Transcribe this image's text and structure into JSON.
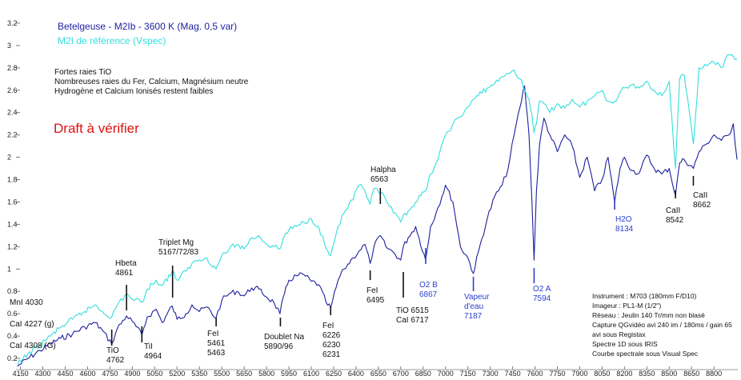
{
  "chart_data": {
    "type": "line",
    "title": "Betelgeuse - M2Ib - 3600 K (Mag. 0,5 var)",
    "subtitle": "M2I de référence (Vspec)",
    "xlabel": "",
    "ylabel": "",
    "xlim": [
      4120,
      8960
    ],
    "ylim": [
      0.1,
      3.35
    ],
    "x_ticks": [
      "4150",
      "4300",
      "4450",
      "4600",
      "4750",
      "4900",
      "5050",
      "5200",
      "5350",
      "5500",
      "5650",
      "5800",
      "5950",
      "6100",
      "6250",
      "6400",
      "6550",
      "6700",
      "6850",
      "7000",
      "7150",
      "7300",
      "7450",
      "7600",
      "7750",
      "7900",
      "8050",
      "8200",
      "8350",
      "8500",
      "8650",
      "8800"
    ],
    "y_ticks": [
      "0.2",
      "0.4",
      "0.6",
      "0.8",
      "1",
      "1.2",
      "1.4",
      "1.6",
      "1.8",
      "2",
      "2.2",
      "2.4",
      "2.6",
      "2.8",
      "3",
      "3.2"
    ],
    "series": [
      {
        "name": "Betelgeuse - M2Ib - 3600 K (Mag. 0,5 var)",
        "color": "#1d1f9e",
        "x": [
          4130,
          4200,
          4280,
          4350,
          4420,
          4500,
          4580,
          4650,
          4700,
          4762,
          4800,
          4861,
          4900,
          4964,
          5000,
          5060,
          5100,
          5167,
          5200,
          5260,
          5300,
          5350,
          5400,
          5461,
          5500,
          5550,
          5600,
          5650,
          5700,
          5750,
          5800,
          5850,
          5890,
          5920,
          5950,
          6000,
          6050,
          6100,
          6150,
          6200,
          6230,
          6280,
          6320,
          6380,
          6420,
          6460,
          6495,
          6520,
          6563,
          6600,
          6650,
          6700,
          6717,
          6750,
          6800,
          6867,
          6900,
          6950,
          7000,
          7050,
          7100,
          7150,
          7187,
          7220,
          7280,
          7330,
          7380,
          7420,
          7460,
          7500,
          7530,
          7560,
          7580,
          7594,
          7610,
          7630,
          7660,
          7700,
          7750,
          7800,
          7850,
          7900,
          7950,
          8000,
          8050,
          8090,
          8134,
          8170,
          8200,
          8250,
          8300,
          8350,
          8400,
          8450,
          8500,
          8542,
          8570,
          8600,
          8662,
          8700,
          8750,
          8800,
          8850,
          8900,
          8930,
          8955
        ],
        "y": [
          0.13,
          0.2,
          0.27,
          0.33,
          0.38,
          0.42,
          0.48,
          0.52,
          0.45,
          0.33,
          0.47,
          0.58,
          0.53,
          0.41,
          0.57,
          0.64,
          0.52,
          0.67,
          0.55,
          0.6,
          0.68,
          0.62,
          0.66,
          0.56,
          0.72,
          0.78,
          0.8,
          0.76,
          0.83,
          0.82,
          0.75,
          0.7,
          0.6,
          0.78,
          0.9,
          0.94,
          0.95,
          0.89,
          0.86,
          0.7,
          0.65,
          0.9,
          1.0,
          1.1,
          1.16,
          1.22,
          1.05,
          1.2,
          1.3,
          1.2,
          1.15,
          1.08,
          1.2,
          1.28,
          1.38,
          1.08,
          1.38,
          1.55,
          1.75,
          1.6,
          1.2,
          1.1,
          0.96,
          1.15,
          1.45,
          1.65,
          1.75,
          1.9,
          2.2,
          2.45,
          2.64,
          2.2,
          1.6,
          1.08,
          1.7,
          2.1,
          2.35,
          2.2,
          2.05,
          2.2,
          2.1,
          1.82,
          2.0,
          1.7,
          1.8,
          2.0,
          1.6,
          1.9,
          2.0,
          1.88,
          1.86,
          2.02,
          1.9,
          1.85,
          1.9,
          1.66,
          1.95,
          1.98,
          1.9,
          2.05,
          2.12,
          2.2,
          2.15,
          2.2,
          2.3,
          1.98
        ]
      },
      {
        "name": "M2I de référence (Vspec)",
        "color": "#33dede",
        "x": [
          4130,
          4200,
          4280,
          4350,
          4420,
          4500,
          4580,
          4650,
          4700,
          4762,
          4800,
          4861,
          4900,
          4964,
          5000,
          5060,
          5100,
          5167,
          5200,
          5260,
          5300,
          5350,
          5400,
          5461,
          5500,
          5550,
          5600,
          5650,
          5700,
          5750,
          5800,
          5850,
          5890,
          5920,
          5950,
          6000,
          6050,
          6100,
          6150,
          6200,
          6230,
          6280,
          6320,
          6380,
          6420,
          6460,
          6495,
          6520,
          6563,
          6600,
          6650,
          6700,
          6717,
          6750,
          6800,
          6867,
          6900,
          6950,
          7000,
          7050,
          7100,
          7150,
          7187,
          7220,
          7280,
          7330,
          7380,
          7420,
          7460,
          7500,
          7530,
          7560,
          7580,
          7594,
          7610,
          7630,
          7660,
          7700,
          7750,
          7800,
          7850,
          7900,
          7950,
          8000,
          8050,
          8090,
          8134,
          8170,
          8200,
          8250,
          8300,
          8350,
          8400,
          8450,
          8500,
          8542,
          8570,
          8600,
          8662,
          8700,
          8750,
          8800,
          8850,
          8900,
          8930,
          8955
        ],
        "y": [
          0.14,
          0.24,
          0.32,
          0.4,
          0.48,
          0.55,
          0.62,
          0.68,
          0.62,
          0.57,
          0.68,
          0.78,
          0.73,
          0.7,
          0.82,
          0.9,
          0.85,
          0.98,
          0.9,
          0.98,
          1.05,
          1.08,
          1.1,
          1.0,
          1.12,
          1.18,
          1.22,
          1.18,
          1.28,
          1.3,
          1.22,
          1.2,
          1.18,
          1.3,
          1.35,
          1.38,
          1.42,
          1.45,
          1.38,
          1.18,
          1.12,
          1.38,
          1.5,
          1.62,
          1.75,
          1.7,
          1.58,
          1.72,
          1.68,
          1.62,
          1.5,
          1.42,
          1.48,
          1.52,
          1.6,
          1.7,
          1.85,
          1.98,
          2.2,
          2.3,
          2.36,
          2.45,
          2.52,
          2.55,
          2.62,
          2.66,
          2.72,
          2.75,
          2.78,
          2.7,
          2.6,
          2.52,
          2.38,
          2.22,
          2.3,
          2.5,
          2.48,
          2.4,
          2.48,
          2.44,
          2.52,
          2.45,
          2.5,
          2.55,
          2.6,
          2.5,
          2.5,
          2.58,
          2.62,
          2.65,
          2.62,
          2.68,
          2.6,
          2.55,
          2.68,
          1.9,
          2.7,
          2.74,
          2.12,
          2.8,
          2.82,
          2.85,
          2.8,
          2.92,
          2.9,
          2.88
        ]
      }
    ],
    "annotations": [
      {
        "lines": [
          "MnI 4030"
        ],
        "color": "black",
        "x": 4120,
        "marker": false
      },
      {
        "lines": [
          "CaI 4227 (g)"
        ],
        "color": "black",
        "x": 4120,
        "marker": false
      },
      {
        "lines": [
          "CaI 4308 (G)"
        ],
        "color": "black",
        "x": 4120,
        "marker": false
      },
      {
        "lines": [
          "TiO",
          "4762"
        ],
        "color": "black",
        "x": 4762,
        "marker": true
      },
      {
        "lines": [
          "Hbeta",
          "4861"
        ],
        "color": "black",
        "x": 4861,
        "marker": true
      },
      {
        "lines": [
          "TiI",
          "4964"
        ],
        "color": "black",
        "x": 4964,
        "marker": true
      },
      {
        "lines": [
          "Triplet Mg",
          "5167/72/83"
        ],
        "color": "black",
        "x": 5170,
        "marker": true
      },
      {
        "lines": [
          "FeI",
          "5461",
          "5463"
        ],
        "color": "black",
        "x": 5462,
        "marker": true
      },
      {
        "lines": [
          "Doublet Na",
          "5890/96"
        ],
        "color": "black",
        "x": 5893,
        "marker": true
      },
      {
        "lines": [
          "FeI",
          "6226",
          "6230",
          "6231"
        ],
        "color": "black",
        "x": 6230,
        "marker": true
      },
      {
        "lines": [
          "Halpha",
          "6563"
        ],
        "color": "black",
        "x": 6563,
        "marker": true
      },
      {
        "lines": [
          "FeI",
          "6495"
        ],
        "color": "black",
        "x": 6495,
        "marker": true
      },
      {
        "lines": [
          "TiO 6515",
          "CaI 6717"
        ],
        "color": "black",
        "x": 6717,
        "marker": true
      },
      {
        "lines": [
          "O2 B",
          "6867"
        ],
        "color": "blue",
        "x": 6867,
        "marker": true
      },
      {
        "lines": [
          "Vapeur",
          "d'eau",
          "7187"
        ],
        "color": "blue",
        "x": 7187,
        "marker": true
      },
      {
        "lines": [
          "O2 A",
          "7594"
        ],
        "color": "blue",
        "x": 7594,
        "marker": true
      },
      {
        "lines": [
          "H2O",
          "8134"
        ],
        "color": "blue",
        "x": 8134,
        "marker": true
      },
      {
        "lines": [
          "CaII",
          "8542"
        ],
        "color": "black",
        "x": 8542,
        "marker": true
      },
      {
        "lines": [
          "CaII",
          "8662"
        ],
        "color": "black",
        "x": 8662,
        "marker": true
      }
    ],
    "notes": {
      "top": [
        "Fortes raies TiO",
        "Nombreuses raies du Fer, Calcium, Magnésium neutre",
        "Hydrogène et Calcium Ionisés restent faibles"
      ],
      "draft": "Draft à vérifier",
      "instrument": [
        "Instrument : M703 (180mm F/D10)",
        "Imageur : PL1-M (1/2\")",
        "Réseau : Jeulin 140 Tr/mm non blasé",
        "Capture QGvidéo avi 240 im / 180ms / gain 65",
        "avi sous Registax",
        "Spectre 1D sous IRIS",
        "Courbe spectrale sous Visual Spec"
      ]
    },
    "colors": {
      "target": "#1d1f9e",
      "reference": "#33dede",
      "draft": "#e01010",
      "blue_label": "#2a3fd0",
      "grid": "#d8d8d8"
    }
  }
}
